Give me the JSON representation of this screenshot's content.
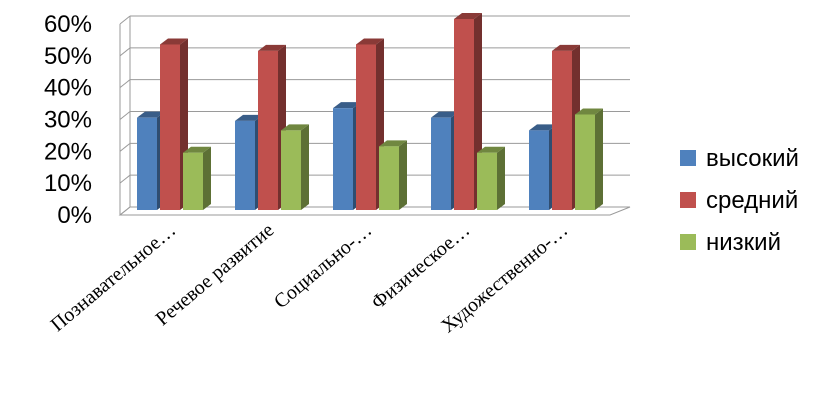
{
  "chart_data": {
    "type": "bar",
    "categories": [
      "Познавательное…",
      "Речевое развитие",
      "Социально-…",
      "Физическое…",
      "Художественно-…"
    ],
    "series": [
      {
        "name": "высокий",
        "values": [
          29,
          28,
          32,
          29,
          25
        ],
        "color": "#4f81bd"
      },
      {
        "name": "средний",
        "values": [
          52,
          50,
          52,
          60,
          50
        ],
        "color": "#c0504d"
      },
      {
        "name": "низкий",
        "values": [
          18,
          25,
          20,
          18,
          30
        ],
        "color": "#9bbb59"
      }
    ],
    "yticks": [
      "0%",
      "10%",
      "20%",
      "30%",
      "40%",
      "50%",
      "60%"
    ],
    "ylim": [
      0,
      60
    ],
    "grid": true,
    "legend_position": "right",
    "style": "3d-clustered-column"
  }
}
